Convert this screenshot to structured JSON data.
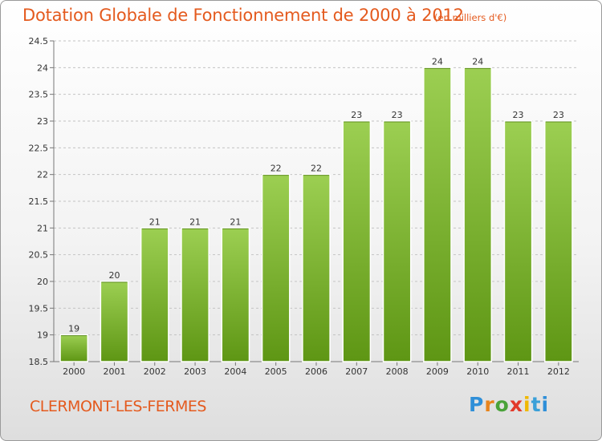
{
  "header": {
    "title": "Dotation Globale de Fonctionnement de 2000 à 2012",
    "unit": "(en milliers d'€)"
  },
  "footer": {
    "commune": "CLERMONT-LES-FERMES",
    "brand": "Proxiti"
  },
  "colors": {
    "title": "#e45a1e",
    "bar_top": "#9ccf52",
    "bar_bottom": "#5e9614",
    "grid": "#c4c4c4"
  },
  "chart_data": {
    "type": "bar",
    "title": "Dotation Globale de Fonctionnement de 2000 à 2012",
    "subtitle": "(en milliers d'€)",
    "xlabel": "",
    "ylabel": "",
    "categories": [
      "2000",
      "2001",
      "2002",
      "2003",
      "2004",
      "2005",
      "2006",
      "2007",
      "2008",
      "2009",
      "2010",
      "2011",
      "2012"
    ],
    "values": [
      19,
      20,
      21,
      21,
      21,
      22,
      22,
      23,
      23,
      24,
      24,
      23,
      23
    ],
    "data_labels": [
      "19",
      "20",
      "21",
      "21",
      "21",
      "22",
      "22",
      "23",
      "23",
      "24",
      "24",
      "23",
      "23"
    ],
    "ylim": [
      18.5,
      24.5
    ],
    "yticks": [
      18.5,
      19,
      19.5,
      20,
      20.5,
      21,
      21.5,
      22,
      22.5,
      23,
      23.5,
      24,
      24.5
    ],
    "ytick_labels": [
      "18.5",
      "19",
      "19.5",
      "20",
      "20.5",
      "21",
      "21.5",
      "22",
      "22.5",
      "23",
      "23.5",
      "24",
      "24.5"
    ],
    "grid": true,
    "legend": "none"
  }
}
